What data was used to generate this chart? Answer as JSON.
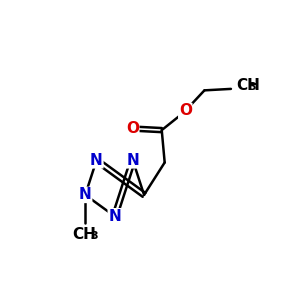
{
  "background_color": "#ffffff",
  "atom_color_C": "#000000",
  "atom_color_N": "#0000cc",
  "atom_color_O": "#dd0000",
  "bond_color": "#000000",
  "bond_width": 1.8,
  "font_size_atom": 11,
  "font_size_subscript": 8,
  "figsize": [
    3.0,
    3.0
  ],
  "dpi": 100,
  "xlim": [
    0,
    10
  ],
  "ylim": [
    0,
    10
  ]
}
